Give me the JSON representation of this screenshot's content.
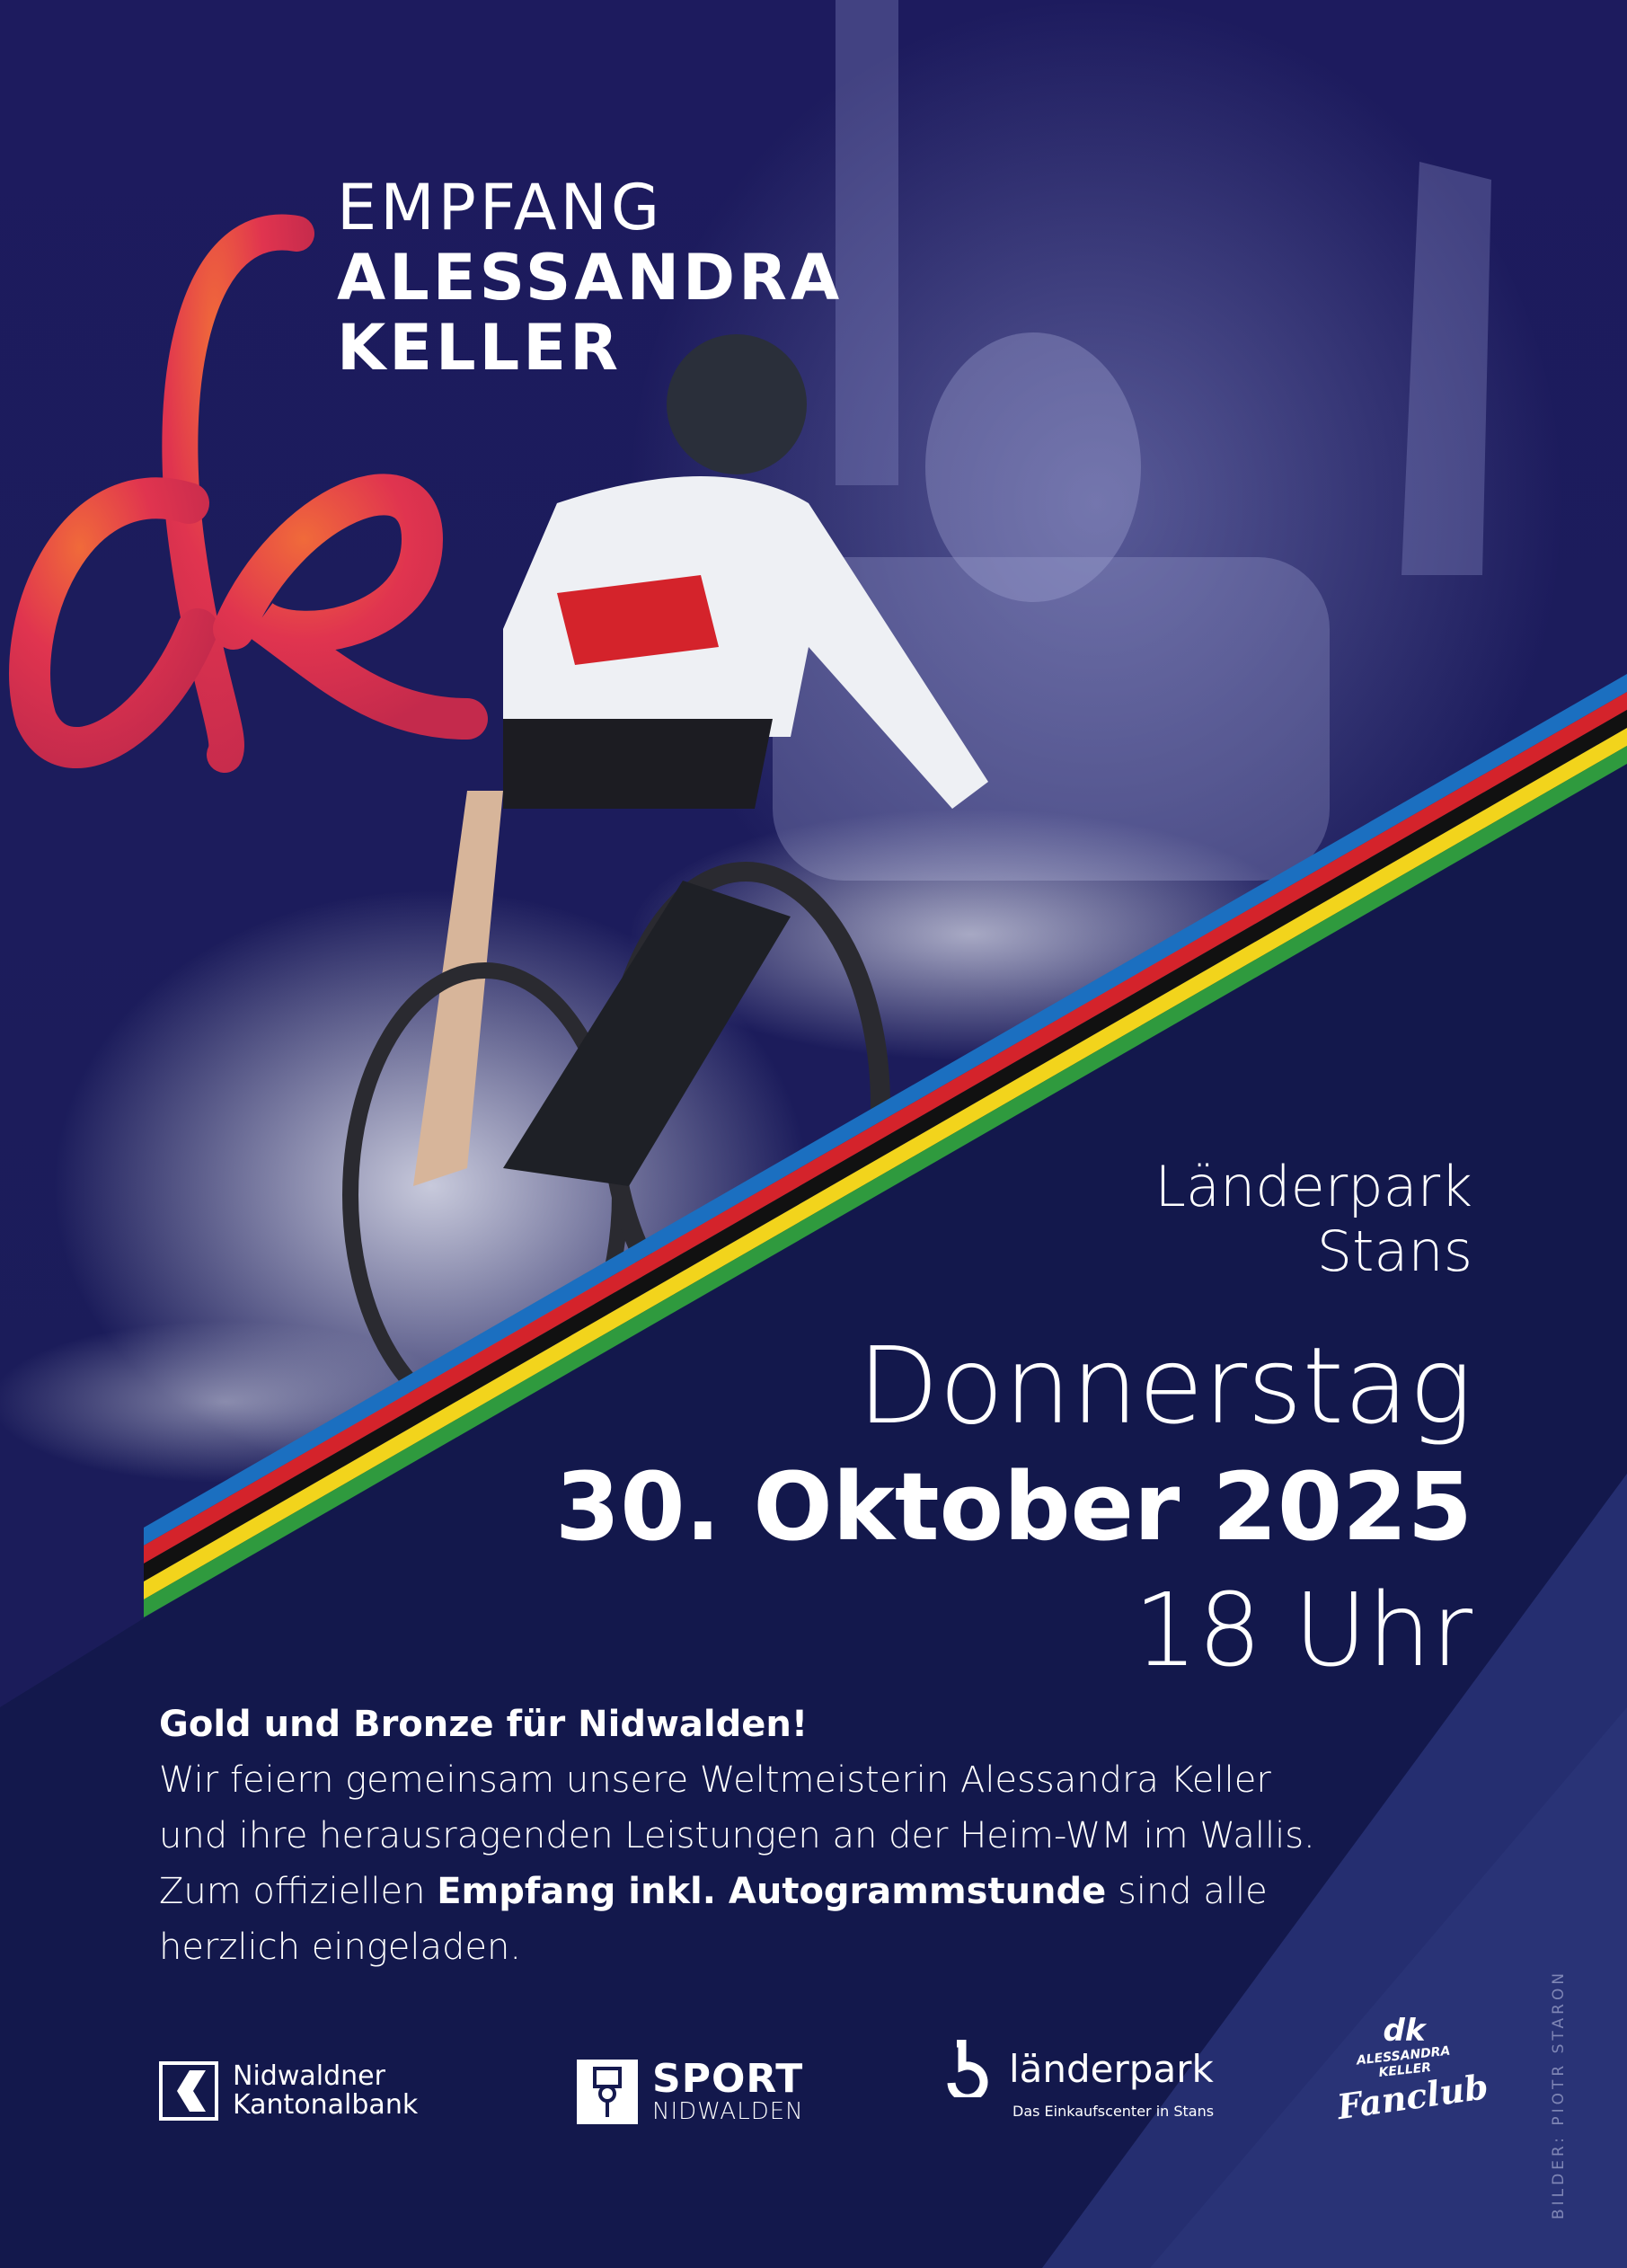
{
  "headline": {
    "line1": "EMPFANG",
    "line2": "ALESSANDRA",
    "line3": "KELLER"
  },
  "venue": {
    "line1": "Länderpark",
    "line2": "Stans"
  },
  "date": {
    "weekday": "Donnerstag",
    "date": "30. Oktober 2025",
    "time": "18 Uhr"
  },
  "body": {
    "heading": "Gold und Bronze für Nidwalden!",
    "line1": "Wir feiern gemeinsam unsere Weltmeisterin Alessandra Keller",
    "line2": "und ihre herausragenden Leistungen an der Heim-WM im Wallis.",
    "line3_pre": "Zum offiziellen ",
    "line3_bold": "Empfang inkl. Autogrammstunde",
    "line3_post": " sind alle",
    "line4": "herzlich eingeladen."
  },
  "sponsors": {
    "nkb": {
      "line1": "Nidwaldner",
      "line2": "Kantonalbank"
    },
    "sport": {
      "line1": "SPORT",
      "line2": "NIDWALDEN"
    },
    "laenderpark": {
      "name": "länderpark",
      "tagline": "Das Einkaufscenter in Stans"
    },
    "fanclub": {
      "line1": "ALESSANDRA KELLER",
      "line2": "Fanclub"
    }
  },
  "credit": "BILDER: PIOTR STARON",
  "colors": {
    "background": "#15194f",
    "ribbon": "#e0344f",
    "stripes": [
      "#1b6fc0",
      "#d4232b",
      "#111111",
      "#f2d41c",
      "#2f9a3e"
    ]
  }
}
